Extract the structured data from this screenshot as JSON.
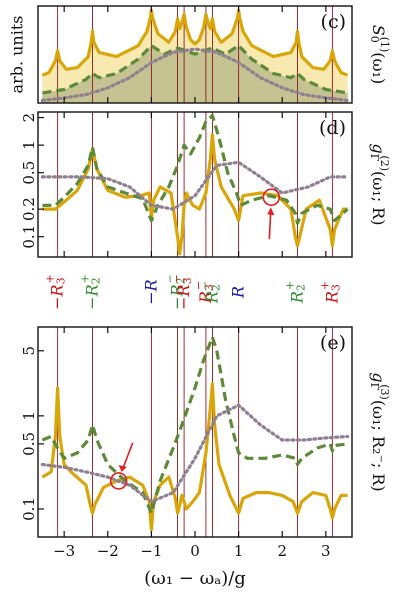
{
  "colors": {
    "solid": "#d9a60a",
    "dashed": "#5c8a3a",
    "dotted": "#8f7f90",
    "vline": "#8b1a1a",
    "fill_yellow": "#f6e7a6",
    "fill_green": "#b8b98a",
    "red_label": "#cc1111",
    "green_label": "#2f8a2f",
    "blue_label": "#1a1aa0",
    "marker": "#e02020"
  },
  "x_axis": {
    "label": "(ω₁ − ωₐ)/g",
    "range": [
      -3.6,
      3.6
    ],
    "ticks": [
      -3,
      -2,
      -1,
      0,
      1,
      2,
      3
    ],
    "tick_labels": [
      "−3",
      "−2",
      "−1",
      "0",
      "1",
      "2",
      "3"
    ]
  },
  "resonances": [
    {
      "x": -3.15,
      "label": "−R",
      "sub": "3",
      "sup": "+",
      "color": "red"
    },
    {
      "x": -2.35,
      "label": "−R",
      "sub": "2",
      "sup": "+",
      "color": "green"
    },
    {
      "x": -1.0,
      "label": "−R",
      "sub": "",
      "sup": "",
      "color": "blue"
    },
    {
      "x": -0.4,
      "label": "−R",
      "sub": "2",
      "sup": "−",
      "color": "green"
    },
    {
      "x": -0.25,
      "label": "−R",
      "sub": "3",
      "sup": "−",
      "color": "red"
    },
    {
      "x": 0.25,
      "label": "R",
      "sub": "3",
      "sup": "−",
      "color": "red"
    },
    {
      "x": 0.4,
      "label": "R",
      "sub": "2",
      "sup": "−",
      "color": "green"
    },
    {
      "x": 1.0,
      "label": "R",
      "sub": "",
      "sup": "",
      "color": "blue"
    },
    {
      "x": 2.35,
      "label": "R",
      "sub": "2",
      "sup": "+",
      "color": "green"
    },
    {
      "x": 3.15,
      "label": "R",
      "sub": "3",
      "sup": "+",
      "color": "red"
    }
  ],
  "panels": {
    "c": {
      "label": "(c)",
      "ylabel": "arb. units",
      "side_label_main": "S",
      "side_label_sub": "0",
      "side_label_sup": "(1)",
      "side_label_arg": "(ω₁)"
    },
    "d": {
      "label": "(d)",
      "ytick_labels": [
        "0.1",
        "0.2",
        "0.5",
        "1",
        "2"
      ],
      "side_label_main": "g",
      "side_label_sub": "Γ",
      "side_label_sup": "(2)",
      "side_label_arg": "(ω₁; R)"
    },
    "e": {
      "label": "(e)",
      "ytick_labels": [
        "0.1",
        "0.5",
        "1",
        "5"
      ],
      "side_label_main": "g",
      "side_label_sub": "Γ",
      "side_label_sup": "(3)",
      "side_label_arg": "(ω₁; R₂⁻; R)"
    }
  },
  "chart_data": [
    {
      "type": "line",
      "panel": "c",
      "title": "",
      "xlabel": "",
      "ylabel": "arb. units",
      "log_y": false,
      "ylim": [
        0,
        1.15
      ],
      "series": [
        {
          "style": "solid",
          "x": [
            -3.5,
            -3.35,
            -3.2,
            -3.15,
            -3.1,
            -2.95,
            -2.7,
            -2.45,
            -2.38,
            -2.35,
            -2.32,
            -2.2,
            -1.8,
            -1.3,
            -1.1,
            -1.02,
            -1.0,
            -0.98,
            -0.85,
            -0.6,
            -0.45,
            -0.4,
            -0.35,
            -0.3,
            -0.25,
            -0.2,
            -0.1,
            0,
            0.1,
            0.2,
            0.25,
            0.3,
            0.35,
            0.4,
            0.45,
            0.6,
            0.85,
            0.98,
            1.0,
            1.02,
            1.1,
            1.3,
            1.8,
            2.2,
            2.32,
            2.35,
            2.38,
            2.45,
            2.7,
            2.95,
            3.1,
            3.15,
            3.2,
            3.35,
            3.5
          ],
          "y": [
            0.33,
            0.36,
            0.5,
            0.62,
            0.5,
            0.4,
            0.42,
            0.55,
            0.72,
            0.85,
            0.72,
            0.6,
            0.55,
            0.68,
            0.85,
            1.02,
            1.1,
            1.02,
            0.82,
            0.72,
            0.85,
            1.0,
            0.88,
            0.95,
            1.05,
            0.9,
            0.75,
            0.7,
            0.75,
            0.9,
            1.05,
            0.95,
            0.88,
            1.0,
            0.85,
            0.72,
            0.82,
            1.02,
            1.1,
            1.02,
            0.85,
            0.68,
            0.55,
            0.6,
            0.72,
            0.85,
            0.72,
            0.55,
            0.42,
            0.4,
            0.5,
            0.62,
            0.5,
            0.36,
            0.33
          ]
        },
        {
          "style": "dashed",
          "x": [
            -3.5,
            -3.0,
            -2.5,
            -2.35,
            -2.2,
            -1.8,
            -1.3,
            -1.0,
            -0.7,
            -0.4,
            -0.2,
            0,
            0.2,
            0.4,
            0.7,
            1.0,
            1.3,
            1.8,
            2.2,
            2.35,
            2.5,
            3.0,
            3.5
          ],
          "y": [
            0.12,
            0.16,
            0.28,
            0.35,
            0.3,
            0.35,
            0.52,
            0.68,
            0.58,
            0.65,
            0.62,
            0.58,
            0.62,
            0.65,
            0.58,
            0.68,
            0.52,
            0.35,
            0.3,
            0.35,
            0.28,
            0.16,
            0.12
          ]
        },
        {
          "style": "dotted",
          "x": [
            -3.5,
            -3.0,
            -2.5,
            -2.0,
            -1.5,
            -1.0,
            -0.5,
            0,
            0.5,
            1.0,
            1.5,
            2.0,
            2.5,
            3.0,
            3.5
          ],
          "y": [
            0.03,
            0.06,
            0.1,
            0.18,
            0.3,
            0.48,
            0.6,
            0.64,
            0.6,
            0.48,
            0.3,
            0.18,
            0.1,
            0.06,
            0.03
          ]
        }
      ]
    },
    {
      "type": "line",
      "panel": "d",
      "title": "",
      "xlabel": "",
      "ylabel": "",
      "log_y": true,
      "ylim": [
        0.06,
        2.3
      ],
      "ticks_y": [
        0.1,
        0.2,
        0.5,
        1,
        2
      ],
      "series": [
        {
          "style": "solid",
          "x": [
            -3.5,
            -3.2,
            -3.0,
            -2.7,
            -2.45,
            -2.35,
            -2.25,
            -2.0,
            -1.6,
            -1.25,
            -1.05,
            -1.0,
            -0.95,
            -0.8,
            -0.55,
            -0.4,
            -0.35,
            -0.3,
            -0.25,
            -0.2,
            -0.05,
            0.1,
            0.25,
            0.35,
            0.4,
            0.45,
            0.6,
            0.9,
            1.0,
            1.1,
            1.5,
            1.9,
            2.2,
            2.3,
            2.35,
            2.4,
            2.55,
            2.85,
            3.1,
            3.15,
            3.2,
            3.4,
            3.5
          ],
          "y": [
            0.2,
            0.2,
            0.24,
            0.32,
            0.55,
            0.9,
            0.55,
            0.32,
            0.27,
            0.28,
            0.3,
            0.16,
            0.25,
            0.35,
            0.3,
            0.1,
            0.065,
            0.1,
            0.22,
            0.3,
            0.22,
            0.2,
            0.3,
            0.7,
            1.3,
            0.7,
            0.35,
            0.2,
            0.15,
            0.28,
            0.3,
            0.28,
            0.2,
            0.1,
            0.08,
            0.1,
            0.2,
            0.25,
            0.12,
            0.08,
            0.12,
            0.2,
            0.2
          ]
        },
        {
          "style": "dashed",
          "x": [
            -3.5,
            -3.2,
            -3.0,
            -2.7,
            -2.45,
            -2.35,
            -2.25,
            -2.0,
            -1.6,
            -1.2,
            -1.0,
            -0.85,
            -0.6,
            -0.4,
            -0.25,
            -0.1,
            0.1,
            0.25,
            0.4,
            0.55,
            0.75,
            0.95,
            1.05,
            1.3,
            1.7,
            2.1,
            2.3,
            2.35,
            2.45,
            2.8,
            3.1,
            3.2,
            3.5
          ],
          "y": [
            0.22,
            0.22,
            0.27,
            0.38,
            0.6,
            0.95,
            0.55,
            0.35,
            0.3,
            0.26,
            0.15,
            0.22,
            0.35,
            0.6,
            1.0,
            0.8,
            1.2,
            1.8,
            2.1,
            1.2,
            0.5,
            0.3,
            0.22,
            0.25,
            0.28,
            0.25,
            0.18,
            0.14,
            0.18,
            0.22,
            0.2,
            0.15,
            0.2
          ]
        },
        {
          "style": "dotted",
          "x": [
            -3.5,
            -3.1,
            -2.6,
            -2.0,
            -1.5,
            -1.0,
            -0.5,
            0,
            0.5,
            1.0,
            1.5,
            2.0,
            2.6,
            3.1,
            3.5
          ],
          "y": [
            0.45,
            0.45,
            0.45,
            0.43,
            0.35,
            0.22,
            0.2,
            0.28,
            0.6,
            0.65,
            0.45,
            0.3,
            0.35,
            0.45,
            0.45
          ]
        }
      ]
    },
    {
      "type": "line",
      "panel": "e",
      "title": "",
      "xlabel": "(ω₁ − ωₐ)/g",
      "ylabel": "",
      "log_y": true,
      "ylim": [
        0.05,
        9
      ],
      "ticks_y": [
        0.1,
        0.5,
        1,
        5
      ],
      "series": [
        {
          "style": "solid",
          "x": [
            -3.5,
            -3.3,
            -3.2,
            -3.15,
            -3.1,
            -3.0,
            -2.8,
            -2.5,
            -2.4,
            -2.35,
            -2.3,
            -2.1,
            -1.8,
            -1.5,
            -1.2,
            -1.05,
            -1.0,
            -0.95,
            -0.8,
            -0.6,
            -0.45,
            -0.4,
            -0.35,
            -0.3,
            -0.25,
            -0.2,
            -0.05,
            0.1,
            0.25,
            0.35,
            0.4,
            0.45,
            0.55,
            0.8,
            1.0,
            1.1,
            1.4,
            1.7,
            2.0,
            2.25,
            2.35,
            2.45,
            2.7,
            3.0,
            3.1,
            3.15,
            3.2,
            3.35,
            3.5
          ],
          "y": [
            0.22,
            0.25,
            0.6,
            2.0,
            0.6,
            0.3,
            0.24,
            0.18,
            0.11,
            0.09,
            0.11,
            0.17,
            0.2,
            0.22,
            0.18,
            0.12,
            0.06,
            0.12,
            0.18,
            0.22,
            0.13,
            0.09,
            0.11,
            0.14,
            0.12,
            0.1,
            0.12,
            0.15,
            0.4,
            1.2,
            2.2,
            0.8,
            0.3,
            0.14,
            0.09,
            0.13,
            0.15,
            0.15,
            0.14,
            0.12,
            0.09,
            0.12,
            0.15,
            0.14,
            0.1,
            0.08,
            0.1,
            0.14,
            0.14
          ]
        },
        {
          "style": "dashed",
          "x": [
            -3.5,
            -3.3,
            -3.15,
            -3.0,
            -2.7,
            -2.45,
            -2.35,
            -2.25,
            -2.0,
            -1.6,
            -1.2,
            -1.0,
            -0.8,
            -0.5,
            -0.3,
            0,
            0.2,
            0.4,
            0.5,
            0.7,
            0.9,
            1.0,
            1.2,
            1.6,
            2.0,
            2.3,
            2.35,
            2.45,
            2.8,
            3.1,
            3.15,
            3.2,
            3.5
          ],
          "y": [
            0.55,
            0.6,
            0.45,
            0.35,
            0.4,
            0.55,
            0.8,
            0.55,
            0.3,
            0.2,
            0.15,
            0.09,
            0.2,
            0.45,
            0.8,
            2.0,
            4.0,
            7.0,
            5.0,
            1.5,
            0.6,
            0.4,
            0.35,
            0.35,
            0.38,
            0.35,
            0.3,
            0.35,
            0.45,
            0.5,
            0.42,
            0.48,
            0.5
          ]
        },
        {
          "style": "dotted",
          "x": [
            -3.5,
            -3.0,
            -2.5,
            -2.0,
            -1.5,
            -1.0,
            -0.5,
            0,
            0.5,
            1.0,
            1.5,
            2.0,
            2.5,
            3.0,
            3.5
          ],
          "y": [
            0.3,
            0.28,
            0.25,
            0.22,
            0.18,
            0.12,
            0.15,
            0.35,
            1.0,
            1.3,
            0.8,
            0.55,
            0.55,
            0.58,
            0.6
          ]
        }
      ]
    }
  ]
}
